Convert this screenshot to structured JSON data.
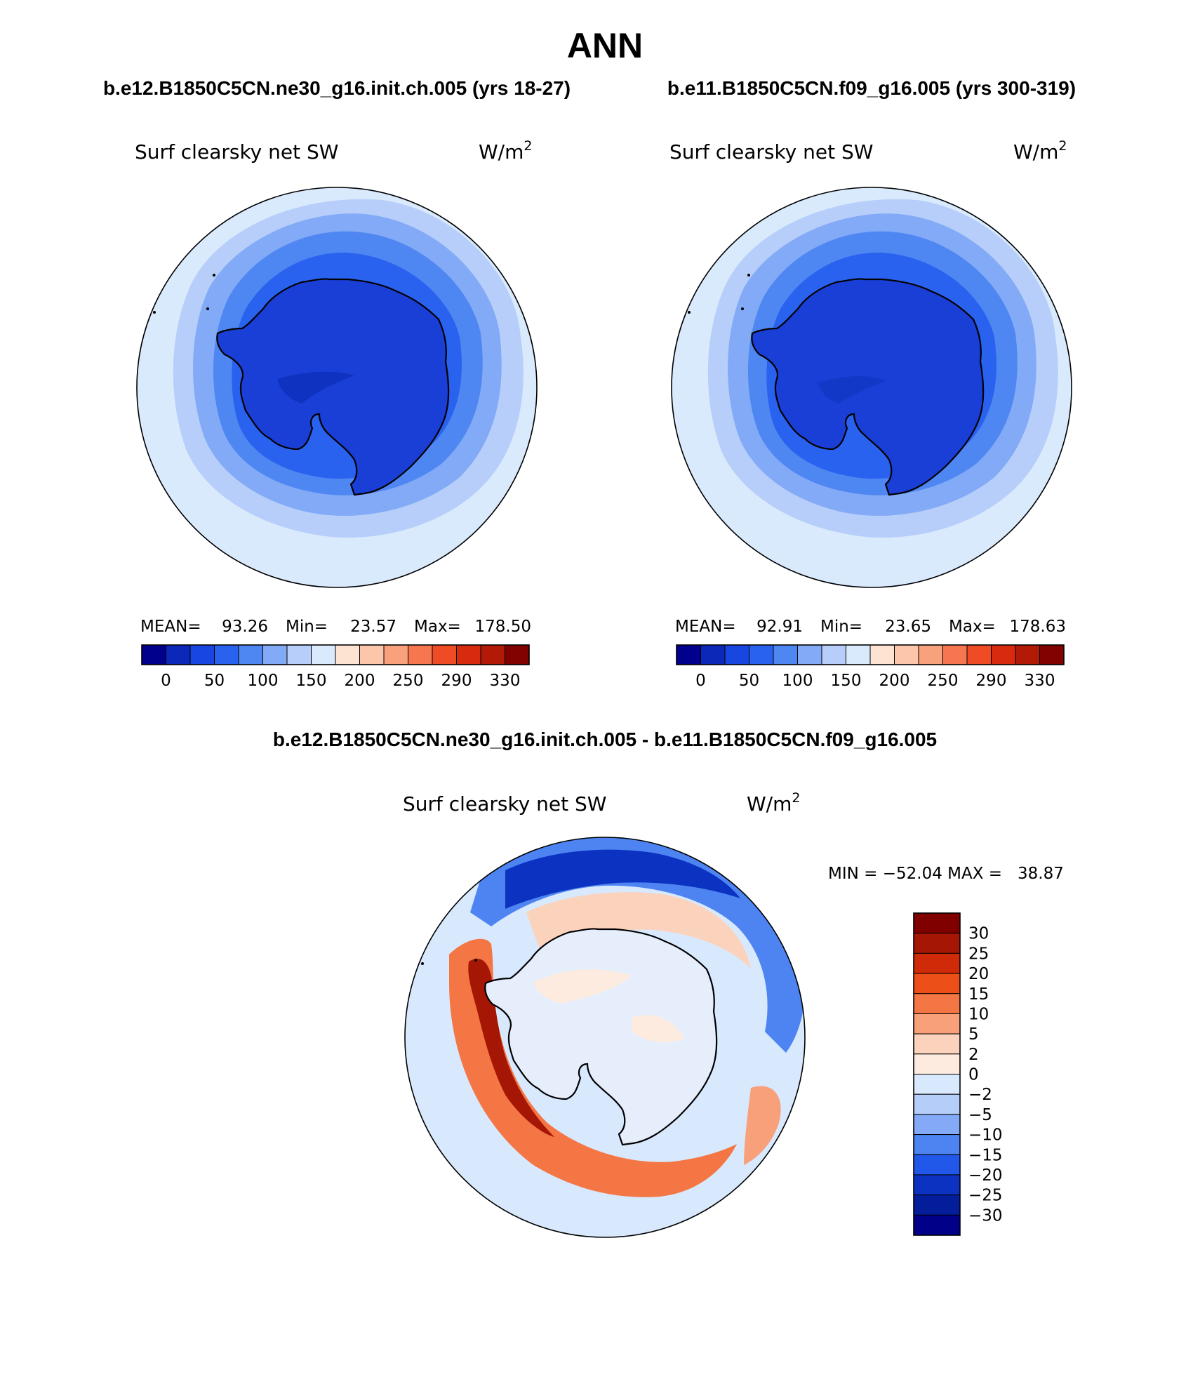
{
  "page_title": "ANN",
  "panels": [
    {
      "case_title": "b.e12.B1850C5CN.ne30_g16.init.ch.005 (yrs 18-27)",
      "variable": "Surf clearsky net SW",
      "units_base": "W/m",
      "units_exp": "2",
      "stats": {
        "mean_label": "MEAN=",
        "mean": "93.26",
        "min_label": "Min=",
        "min": "23.57",
        "max_label": "Max=",
        "max": "178.50"
      },
      "colorbar_ticks": [
        "0",
        "50",
        "100",
        "150",
        "200",
        "250",
        "290",
        "330"
      ]
    },
    {
      "case_title": "b.e11.B1850C5CN.f09_g16.005 (yrs 300-319)",
      "variable": "Surf clearsky net SW",
      "units_base": "W/m",
      "units_exp": "2",
      "stats": {
        "mean_label": "MEAN=",
        "mean": "92.91",
        "min_label": "Min=",
        "min": "23.65",
        "max_label": "Max=",
        "max": "178.63"
      },
      "colorbar_ticks": [
        "0",
        "50",
        "100",
        "150",
        "200",
        "250",
        "290",
        "330"
      ]
    }
  ],
  "diff_panel": {
    "title": "b.e12.B1850C5CN.ne30_g16.init.ch.005 - b.e11.B1850C5CN.f09_g16.005",
    "variable": "Surf clearsky net SW",
    "units_base": "W/m",
    "units_exp": "2",
    "minmax": "MIN = −52.04 MAX =   38.87",
    "colorbar_ticks": [
      "30",
      "25",
      "20",
      "15",
      "10",
      "5",
      "2",
      "0",
      "−2",
      "−5",
      "−10",
      "−15",
      "−20",
      "−25",
      "−30"
    ]
  },
  "colors": {
    "abs_scale": [
      "#00008c",
      "#0b28b9",
      "#1746e0",
      "#2a62f0",
      "#4f87f2",
      "#83aaf6",
      "#b6cef9",
      "#daeafd",
      "#fde3d2",
      "#fcc6ab",
      "#f9a07c",
      "#f67650",
      "#ef4b24",
      "#d82a0e",
      "#b21906",
      "#820202"
    ],
    "diff_scale": [
      "#800000",
      "#a51704",
      "#cf2b08",
      "#ed4f18",
      "#f47644",
      "#f7a079",
      "#fbd3bc",
      "#fdebdf",
      "#d8e8fd",
      "#b4cdf9",
      "#84a9f6",
      "#4d84f1",
      "#2258ea",
      "#0c32c2",
      "#041d9a",
      "#000089"
    ],
    "antarctica_fill": "#1a3fd6",
    "coastline": "#000000"
  }
}
